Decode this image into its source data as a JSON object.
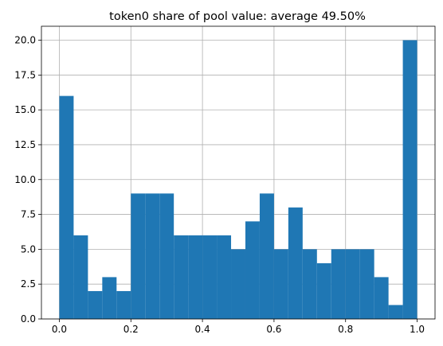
{
  "colors": {
    "bar": "#1f77b4",
    "grid": "#b0b0b0",
    "axis": "#000000",
    "background": "#ffffff"
  },
  "chart_data": {
    "type": "bar",
    "title": "token0 share of pool value: average 49.50%",
    "xlabel": "",
    "ylabel": "",
    "xlim": [
      -0.05,
      1.05
    ],
    "ylim": [
      0,
      21
    ],
    "grid": true,
    "bin_width": 0.04,
    "bins": [
      {
        "x0": 0.0,
        "x1": 0.04,
        "count": 16
      },
      {
        "x0": 0.04,
        "x1": 0.08,
        "count": 6
      },
      {
        "x0": 0.08,
        "x1": 0.12,
        "count": 2
      },
      {
        "x0": 0.12,
        "x1": 0.16,
        "count": 3
      },
      {
        "x0": 0.16,
        "x1": 0.2,
        "count": 2
      },
      {
        "x0": 0.2,
        "x1": 0.24,
        "count": 9
      },
      {
        "x0": 0.24,
        "x1": 0.28,
        "count": 9
      },
      {
        "x0": 0.28,
        "x1": 0.32,
        "count": 9
      },
      {
        "x0": 0.32,
        "x1": 0.36,
        "count": 6
      },
      {
        "x0": 0.36,
        "x1": 0.4,
        "count": 6
      },
      {
        "x0": 0.4,
        "x1": 0.44,
        "count": 6
      },
      {
        "x0": 0.44,
        "x1": 0.48,
        "count": 6
      },
      {
        "x0": 0.48,
        "x1": 0.52,
        "count": 5
      },
      {
        "x0": 0.52,
        "x1": 0.56,
        "count": 7
      },
      {
        "x0": 0.56,
        "x1": 0.6,
        "count": 9
      },
      {
        "x0": 0.6,
        "x1": 0.64,
        "count": 5
      },
      {
        "x0": 0.64,
        "x1": 0.68,
        "count": 8
      },
      {
        "x0": 0.68,
        "x1": 0.72,
        "count": 5
      },
      {
        "x0": 0.72,
        "x1": 0.76,
        "count": 4
      },
      {
        "x0": 0.76,
        "x1": 0.8,
        "count": 5
      },
      {
        "x0": 0.8,
        "x1": 0.84,
        "count": 5
      },
      {
        "x0": 0.84,
        "x1": 0.88,
        "count": 5
      },
      {
        "x0": 0.88,
        "x1": 0.92,
        "count": 3
      },
      {
        "x0": 0.92,
        "x1": 0.96,
        "count": 1
      },
      {
        "x0": 0.96,
        "x1": 1.0,
        "count": 20
      }
    ],
    "x_ticks": [
      {
        "value": 0.0,
        "label": "0.0"
      },
      {
        "value": 0.2,
        "label": "0.2"
      },
      {
        "value": 0.4,
        "label": "0.4"
      },
      {
        "value": 0.6,
        "label": "0.6"
      },
      {
        "value": 0.8,
        "label": "0.8"
      },
      {
        "value": 1.0,
        "label": "1.0"
      }
    ],
    "y_ticks": [
      {
        "value": 0.0,
        "label": "0.0"
      },
      {
        "value": 2.5,
        "label": "2.5"
      },
      {
        "value": 5.0,
        "label": "5.0"
      },
      {
        "value": 7.5,
        "label": "7.5"
      },
      {
        "value": 10.0,
        "label": "10.0"
      },
      {
        "value": 12.5,
        "label": "12.5"
      },
      {
        "value": 15.0,
        "label": "15.0"
      },
      {
        "value": 17.5,
        "label": "17.5"
      },
      {
        "value": 20.0,
        "label": "20.0"
      }
    ]
  }
}
